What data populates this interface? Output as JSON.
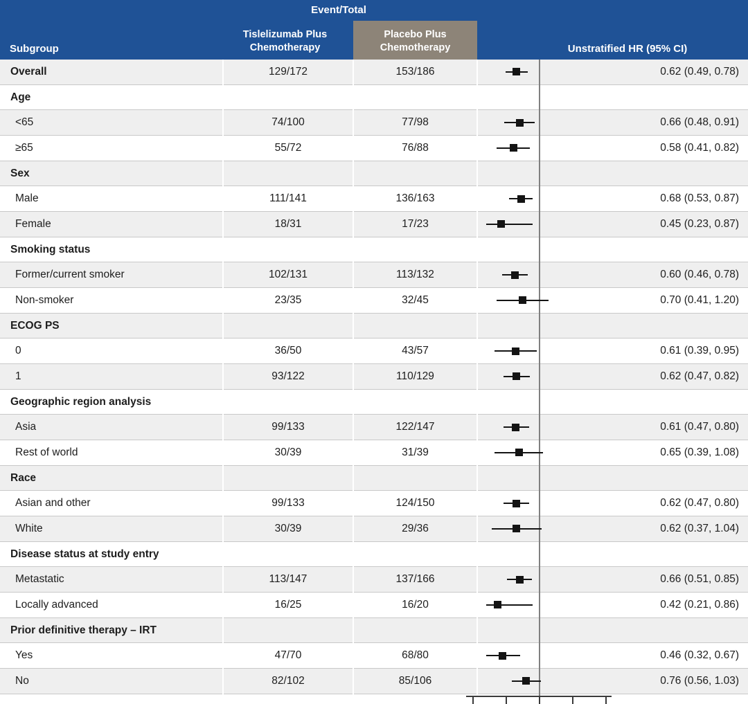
{
  "header": {
    "event_total_label": "Event/Total",
    "subgroup_label": "Subgroup",
    "arm1_label": "Tislelizumab Plus\nChemotherapy",
    "arm2_label": "Placebo Plus\nChemotherapy",
    "hr_label": "Unstratified HR (95% CI)"
  },
  "colors": {
    "header_blue": "#1f5296",
    "arm2_tan": "#8d8478",
    "row_shade_gray": "#efefef",
    "row_border": "#c8c8c8",
    "marker_black": "#141414",
    "reference_line_gray": "#808080",
    "axis_dark": "#3a3a3a",
    "header_text": "#ffffff",
    "body_text": "#1d1d1d"
  },
  "chart_data": {
    "type": "forest",
    "title": "",
    "scale": "log2",
    "reference_value": 1.0,
    "axis_ticks": [
      0.25,
      0.5,
      1,
      2,
      4
    ],
    "columns": [
      "Subgroup",
      "Tislelizumab Plus Chemotherapy Event/Total",
      "Placebo Plus Chemotherapy Event/Total",
      "Unstratified HR (95% CI)"
    ],
    "rows": [
      {
        "kind": "data",
        "label": "Overall",
        "bold": true,
        "indent": false,
        "t": "129/172",
        "p": "153/186",
        "hr": 0.62,
        "lo": 0.49,
        "hi": 0.78,
        "hr_text": "0.62 (0.49, 0.78)"
      },
      {
        "kind": "category",
        "label": "Age"
      },
      {
        "kind": "data",
        "label": "<65",
        "bold": false,
        "indent": true,
        "t": "74/100",
        "p": "77/98",
        "hr": 0.66,
        "lo": 0.48,
        "hi": 0.91,
        "hr_text": "0.66 (0.48, 0.91)"
      },
      {
        "kind": "data",
        "label": "≥65",
        "bold": false,
        "indent": true,
        "t": "55/72",
        "p": "76/88",
        "hr": 0.58,
        "lo": 0.41,
        "hi": 0.82,
        "hr_text": "0.58 (0.41, 0.82)"
      },
      {
        "kind": "category",
        "label": "Sex"
      },
      {
        "kind": "data",
        "label": "Male",
        "bold": false,
        "indent": true,
        "t": "111/141",
        "p": "136/163",
        "hr": 0.68,
        "lo": 0.53,
        "hi": 0.87,
        "hr_text": "0.68 (0.53, 0.87)"
      },
      {
        "kind": "data",
        "label": "Female",
        "bold": false,
        "indent": true,
        "t": "18/31",
        "p": "17/23",
        "hr": 0.45,
        "lo": 0.23,
        "hi": 0.87,
        "hr_text": "0.45 (0.23, 0.87)"
      },
      {
        "kind": "category",
        "label": "Smoking status"
      },
      {
        "kind": "data",
        "label": "Former/current smoker",
        "bold": false,
        "indent": true,
        "t": "102/131",
        "p": "113/132",
        "hr": 0.6,
        "lo": 0.46,
        "hi": 0.78,
        "hr_text": "0.60 (0.46, 0.78)"
      },
      {
        "kind": "data",
        "label": "Non-smoker",
        "bold": false,
        "indent": true,
        "t": "23/35",
        "p": "32/45",
        "hr": 0.7,
        "lo": 0.41,
        "hi": 1.2,
        "hr_text": "0.70 (0.41, 1.20)"
      },
      {
        "kind": "category",
        "label": "ECOG PS"
      },
      {
        "kind": "data",
        "label": "0",
        "bold": false,
        "indent": true,
        "t": "36/50",
        "p": "43/57",
        "hr": 0.61,
        "lo": 0.39,
        "hi": 0.95,
        "hr_text": "0.61 (0.39, 0.95)"
      },
      {
        "kind": "data",
        "label": "1",
        "bold": false,
        "indent": true,
        "t": "93/122",
        "p": "110/129",
        "hr": 0.62,
        "lo": 0.47,
        "hi": 0.82,
        "hr_text": "0.62 (0.47, 0.82)"
      },
      {
        "kind": "category",
        "label": "Geographic region analysis"
      },
      {
        "kind": "data",
        "label": "Asia",
        "bold": false,
        "indent": true,
        "t": "99/133",
        "p": "122/147",
        "hr": 0.61,
        "lo": 0.47,
        "hi": 0.8,
        "hr_text": "0.61 (0.47, 0.80)"
      },
      {
        "kind": "data",
        "label": "Rest of world",
        "bold": false,
        "indent": true,
        "t": "30/39",
        "p": "31/39",
        "hr": 0.65,
        "lo": 0.39,
        "hi": 1.08,
        "hr_text": "0.65 (0.39, 1.08)"
      },
      {
        "kind": "category",
        "label": "Race"
      },
      {
        "kind": "data",
        "label": "Asian and other",
        "bold": false,
        "indent": true,
        "t": "99/133",
        "p": "124/150",
        "hr": 0.62,
        "lo": 0.47,
        "hi": 0.8,
        "hr_text": "0.62 (0.47, 0.80)"
      },
      {
        "kind": "data",
        "label": "White",
        "bold": false,
        "indent": true,
        "t": "30/39",
        "p": "29/36",
        "hr": 0.62,
        "lo": 0.37,
        "hi": 1.04,
        "hr_text": "0.62 (0.37, 1.04)"
      },
      {
        "kind": "category",
        "label": "Disease status at study entry"
      },
      {
        "kind": "data",
        "label": "Metastatic",
        "bold": false,
        "indent": true,
        "t": "113/147",
        "p": "137/166",
        "hr": 0.66,
        "lo": 0.51,
        "hi": 0.85,
        "hr_text": "0.66 (0.51, 0.85)"
      },
      {
        "kind": "data",
        "label": "Locally advanced",
        "bold": false,
        "indent": true,
        "t": "16/25",
        "p": "16/20",
        "hr": 0.42,
        "lo": 0.21,
        "hi": 0.86,
        "hr_text": "0.42 (0.21, 0.86)"
      },
      {
        "kind": "category",
        "label": "Prior definitive therapy – IRT"
      },
      {
        "kind": "data",
        "label": "Yes",
        "bold": false,
        "indent": true,
        "t": "47/70",
        "p": "68/80",
        "hr": 0.46,
        "lo": 0.32,
        "hi": 0.67,
        "hr_text": "0.46 (0.32, 0.67)"
      },
      {
        "kind": "data",
        "label": "No",
        "bold": false,
        "indent": true,
        "t": "82/102",
        "p": "85/106",
        "hr": 0.76,
        "lo": 0.56,
        "hi": 1.03,
        "hr_text": "0.76 (0.56, 1.03)"
      }
    ]
  }
}
